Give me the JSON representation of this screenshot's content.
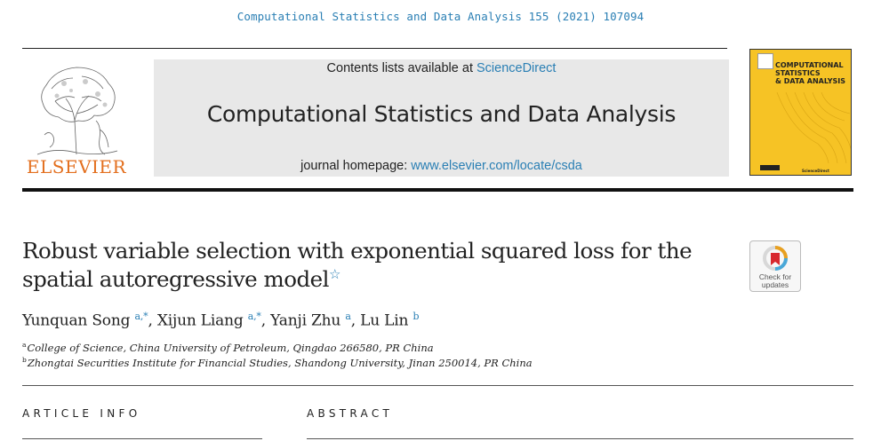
{
  "citation": "Computational Statistics and Data Analysis 155 (2021) 107094",
  "publisher": {
    "wordmark": "ELSEVIER"
  },
  "banner": {
    "contents_prefix": "Contents lists available at ",
    "contents_link": "ScienceDirect",
    "journal_title": "Computational Statistics and Data Analysis",
    "homepage_prefix": "journal homepage: ",
    "homepage_link": "www.elsevier.com/locate/csda"
  },
  "cover": {
    "title_line1": "COMPUTATIONAL",
    "title_line2": "STATISTICS",
    "title_line3": "& DATA ANALYSIS",
    "footer": "ScienceDirect",
    "color": "#f6c325"
  },
  "article": {
    "title": "Robust variable selection with exponential squared loss for the spatial autoregressive model",
    "title_star": "☆",
    "check_updates_line1": "Check for",
    "check_updates_line2": "updates",
    "authors": [
      {
        "name": "Yunquan Song",
        "sup": "a,*",
        "sep": ", "
      },
      {
        "name": "Xijun Liang",
        "sup": "a,*",
        "sep": ", "
      },
      {
        "name": "Yanji Zhu",
        "sup": "a",
        "sep": ", "
      },
      {
        "name": "Lu Lin",
        "sup": "b",
        "sep": ""
      }
    ],
    "affiliations": [
      {
        "mark": "a",
        "text": "College of Science, China University of Petroleum, Qingdao 266580, PR China"
      },
      {
        "mark": "b",
        "text": "Zhongtai Securities Institute for Financial Studies, Shandong University, Jinan 250014, PR China"
      }
    ]
  },
  "sections": {
    "article_info": "ARTICLE INFO",
    "abstract": "ABSTRACT"
  },
  "colors": {
    "link": "#2a7fb4",
    "publisher_orange": "#e36f1e",
    "banner_gray": "#e8e8e8"
  }
}
